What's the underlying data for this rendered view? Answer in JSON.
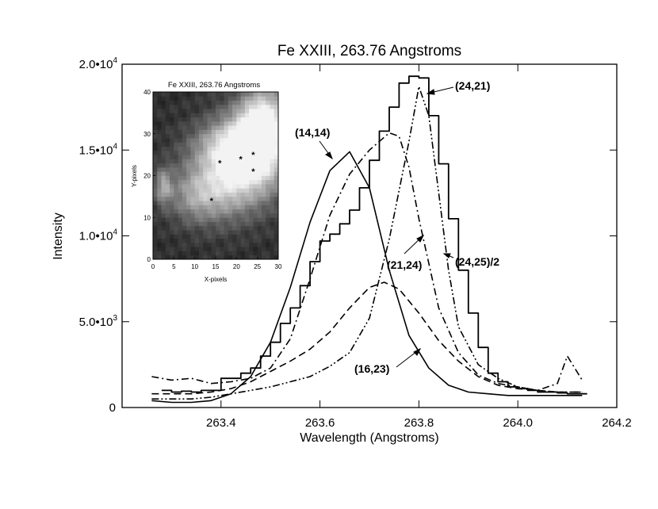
{
  "chart_data": {
    "type": "line",
    "title": "Fe XXIII, 263.76 Angstroms",
    "xlabel": "Wavelength (Angstroms)",
    "ylabel": "Intensity",
    "xlim": [
      263.2,
      264.2
    ],
    "ylim": [
      0,
      20000
    ],
    "x_ticks": [
      "263.4",
      "263.6",
      "263.8",
      "264.0",
      "264.2"
    ],
    "y_ticks": [
      {
        "mant": "0",
        "exp": ""
      },
      {
        "mant": "5.0•10",
        "exp": "3"
      },
      {
        "mant": "1.0•10",
        "exp": "4"
      },
      {
        "mant": "1.5•10",
        "exp": "4"
      },
      {
        "mant": "2.0•10",
        "exp": "4"
      }
    ],
    "series": [
      {
        "name": "(24,25)/2",
        "style": "histogram",
        "x": [
          263.29,
          263.31,
          263.33,
          263.35,
          263.37,
          263.39,
          263.41,
          263.43,
          263.45,
          263.47,
          263.49,
          263.51,
          263.53,
          263.55,
          263.57,
          263.59,
          263.61,
          263.63,
          263.65,
          263.67,
          263.69,
          263.71,
          263.73,
          263.75,
          263.77,
          263.79,
          263.81,
          263.83,
          263.85,
          263.87,
          263.89,
          263.91,
          263.93,
          263.95,
          263.97,
          263.99,
          264.01,
          264.03,
          264.05,
          264.07,
          264.09,
          264.11,
          264.13
        ],
        "y": [
          1000,
          900,
          950,
          900,
          1000,
          1000,
          1700,
          1700,
          2000,
          2300,
          3000,
          3800,
          4900,
          5800,
          7100,
          8500,
          9700,
          10100,
          10700,
          11500,
          12800,
          14400,
          16100,
          17500,
          18900,
          19300,
          19200,
          17000,
          14200,
          11000,
          8000,
          5500,
          3500,
          2000,
          1500,
          1200,
          1100,
          1000,
          900,
          900,
          850,
          800,
          800
        ]
      },
      {
        "name": "(14,14)",
        "style": "solid",
        "x": [
          263.26,
          263.3,
          263.34,
          263.38,
          263.42,
          263.46,
          263.5,
          263.54,
          263.58,
          263.62,
          263.66,
          263.7,
          263.74,
          263.78,
          263.82,
          263.86,
          263.9,
          263.94,
          263.98,
          264.02,
          264.06,
          264.1,
          264.13
        ],
        "y": [
          400,
          300,
          300,
          400,
          800,
          1800,
          3800,
          7000,
          10800,
          13800,
          14900,
          12800,
          8000,
          4200,
          2300,
          1300,
          900,
          800,
          700,
          700,
          700,
          700,
          700
        ]
      },
      {
        "name": "(16,23)",
        "style": "dashed",
        "x": [
          263.26,
          263.3,
          263.34,
          263.38,
          263.42,
          263.46,
          263.5,
          263.54,
          263.58,
          263.62,
          263.66,
          263.7,
          263.73,
          263.76,
          263.8,
          263.84,
          263.88,
          263.92,
          263.96,
          264.0,
          264.04,
          264.08,
          264.13
        ],
        "y": [
          800,
          800,
          800,
          900,
          1100,
          1500,
          2100,
          2700,
          3400,
          4400,
          5800,
          7000,
          7300,
          6900,
          5500,
          3900,
          2700,
          1800,
          1300,
          1100,
          1000,
          900,
          900
        ]
      },
      {
        "name": "(21,24)",
        "style": "dash-dot",
        "x": [
          263.26,
          263.3,
          263.34,
          263.38,
          263.42,
          263.46,
          263.5,
          263.54,
          263.58,
          263.62,
          263.66,
          263.7,
          263.74,
          263.76,
          263.78,
          263.8,
          263.84,
          263.88,
          263.92,
          263.96,
          264.0,
          264.04,
          264.08,
          264.1,
          264.13
        ],
        "y": [
          1800,
          1600,
          1700,
          1400,
          1500,
          1700,
          2300,
          4000,
          7500,
          11200,
          13600,
          15000,
          16000,
          15800,
          14000,
          11000,
          5800,
          3200,
          1900,
          1400,
          1200,
          1000,
          1400,
          3000,
          1600
        ]
      },
      {
        "name": "(24,21)",
        "style": "dash-dot-dot",
        "x": [
          263.26,
          263.3,
          263.34,
          263.38,
          263.42,
          263.46,
          263.5,
          263.54,
          263.58,
          263.62,
          263.66,
          263.7,
          263.74,
          263.78,
          263.8,
          263.82,
          263.84,
          263.86,
          263.88,
          263.92,
          263.96,
          264.0,
          264.04,
          264.08,
          264.13
        ],
        "y": [
          500,
          500,
          500,
          600,
          800,
          1000,
          1200,
          1500,
          1800,
          2400,
          3200,
          5200,
          9800,
          15500,
          18700,
          17000,
          12500,
          8000,
          4700,
          2500,
          1700,
          1200,
          1000,
          900,
          900
        ]
      }
    ],
    "annotations": [
      {
        "text": "(14,14)",
        "series": "(14,14)"
      },
      {
        "text": "(24,21)",
        "series": "(24,21)"
      },
      {
        "text": "(21,24)",
        "series": "(21,24)"
      },
      {
        "text": "(24,25)/2",
        "series": "(24,25)/2"
      },
      {
        "text": "(16,23)",
        "series": "(16,23)"
      }
    ],
    "inset": {
      "type": "heatmap",
      "title": "Fe XXIII, 263.76 Angstroms",
      "xlabel": "X-pixels",
      "ylabel": "Y-pixels",
      "xlim": [
        0,
        30
      ],
      "ylim": [
        0,
        40
      ],
      "x_ticks": [
        "0",
        "5",
        "10",
        "15",
        "20",
        "25",
        "30"
      ],
      "y_ticks": [
        "0",
        "10",
        "20",
        "30",
        "40"
      ],
      "markers": [
        [
          14,
          14
        ],
        [
          16,
          23
        ],
        [
          21,
          24
        ],
        [
          24,
          25
        ],
        [
          24,
          21
        ]
      ]
    }
  }
}
